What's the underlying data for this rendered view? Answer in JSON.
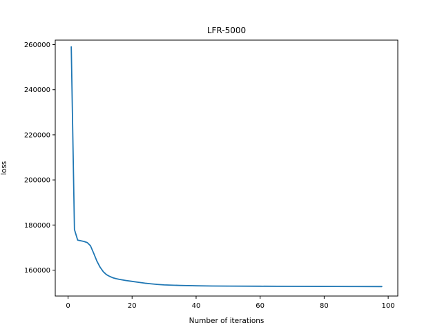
{
  "chart_data": {
    "type": "line",
    "title": "LFR-5000",
    "xlabel": "Number of iterations",
    "ylabel": "loss",
    "xlim": [
      -4,
      103
    ],
    "ylim": [
      148500,
      262000
    ],
    "xticks": [
      0,
      20,
      40,
      60,
      80,
      100
    ],
    "yticks": [
      160000,
      180000,
      200000,
      220000,
      240000,
      260000
    ],
    "grid": false,
    "line_color": "#1f77b4",
    "series": [
      {
        "x": [
          1,
          2,
          3,
          4,
          5,
          6,
          7,
          8,
          9,
          10,
          11,
          12,
          13,
          14,
          15,
          16,
          18,
          20,
          22,
          24,
          26,
          28,
          30,
          35,
          40,
          45,
          50,
          60,
          70,
          80,
          90,
          98
        ],
        "values": [
          259000,
          178000,
          173300,
          173000,
          172700,
          172200,
          170800,
          167500,
          164000,
          161300,
          159300,
          158000,
          157200,
          156600,
          156200,
          155900,
          155400,
          155000,
          154600,
          154200,
          153900,
          153650,
          153450,
          153200,
          153050,
          152950,
          152900,
          152850,
          152800,
          152750,
          152720,
          152700
        ]
      }
    ]
  }
}
